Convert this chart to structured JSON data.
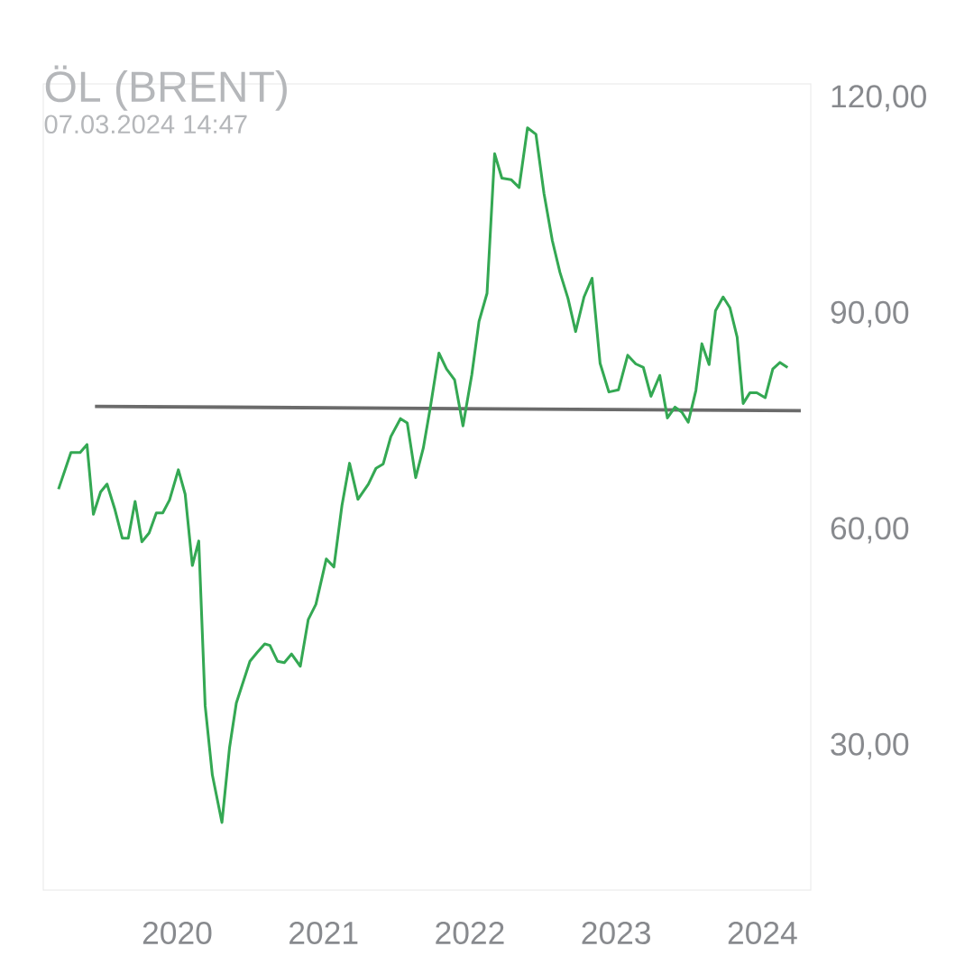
{
  "chart_data": {
    "type": "line",
    "title": "ÖL (BRENT)",
    "subtitle": "07.03.2024 14:47",
    "xlim": [
      "2019-02-01",
      "2024-05-01"
    ],
    "ylim": [
      10,
      122
    ],
    "xticks": [
      {
        "value": "2020-01-01",
        "label": "2020"
      },
      {
        "value": "2021-01-01",
        "label": "2021"
      },
      {
        "value": "2022-01-01",
        "label": "2022"
      },
      {
        "value": "2023-01-01",
        "label": "2023"
      },
      {
        "value": "2024-01-01",
        "label": "2024"
      }
    ],
    "yticks": [
      {
        "value": 30,
        "label": "30,00"
      },
      {
        "value": 60,
        "label": "60,00"
      },
      {
        "value": 90,
        "label": "90,00"
      },
      {
        "value": 120,
        "label": "120,00"
      }
    ],
    "series": [
      {
        "type": "line",
        "color": "#6b6b6b",
        "x": [
          "2019-06-10",
          "2024-04-06"
        ],
        "values": [
          77.2,
          76.6
        ]
      },
      {
        "color": "#34a853",
        "x": [
          "2019-03-11",
          "2019-04-11",
          "2019-05-04",
          "2019-05-21",
          "2019-06-06",
          "2019-06-24",
          "2019-07-10",
          "2019-07-29",
          "2019-08-17",
          "2019-09-01",
          "2019-09-18",
          "2019-10-05",
          "2019-10-23",
          "2019-11-10",
          "2019-11-26",
          "2019-12-13",
          "2020-01-04",
          "2020-01-21",
          "2020-02-08",
          "2020-02-24",
          "2020-03-11",
          "2020-03-29",
          "2020-04-22",
          "2020-05-11",
          "2020-05-28",
          "2020-07-01",
          "2020-07-19",
          "2020-08-07",
          "2020-08-20",
          "2020-09-08",
          "2020-09-25",
          "2020-10-13",
          "2020-11-04",
          "2020-11-24",
          "2020-12-13",
          "2021-01-08",
          "2021-01-27",
          "2021-02-16",
          "2021-03-07",
          "2021-03-28",
          "2021-04-23",
          "2021-05-12",
          "2021-05-30",
          "2021-06-18",
          "2021-07-12",
          "2021-07-29",
          "2021-08-19",
          "2021-09-07",
          "2021-09-25",
          "2021-10-16",
          "2021-11-04",
          "2021-11-24",
          "2021-12-15",
          "2022-01-06",
          "2022-01-24",
          "2022-02-13",
          "2022-03-04",
          "2022-03-22",
          "2022-04-14",
          "2022-05-04",
          "2022-05-25",
          "2022-06-15",
          "2022-07-05",
          "2022-07-26",
          "2022-08-14",
          "2022-09-03",
          "2022-09-22",
          "2022-10-13",
          "2022-11-02",
          "2022-11-22",
          "2022-12-14",
          "2023-01-07",
          "2023-01-30",
          "2023-02-19",
          "2023-03-10",
          "2023-03-29",
          "2023-04-20",
          "2023-05-09",
          "2023-05-28",
          "2023-06-14",
          "2023-06-30",
          "2023-07-19",
          "2023-08-03",
          "2023-08-21",
          "2023-09-06",
          "2023-09-25",
          "2023-10-12",
          "2023-10-30",
          "2023-11-14",
          "2023-12-01",
          "2023-12-18",
          "2024-01-08",
          "2024-01-27",
          "2024-02-14",
          "2024-03-04"
        ],
        "values": [
          65.7,
          70.8,
          70.8,
          71.9,
          62.2,
          65.3,
          66.4,
          63.0,
          58.9,
          58.9,
          64.0,
          58.4,
          59.6,
          62.4,
          62.4,
          64.2,
          68.4,
          65.0,
          55.1,
          58.5,
          35.6,
          26.0,
          19.4,
          29.8,
          36.0,
          41.8,
          43.0,
          44.2,
          44.0,
          41.8,
          41.6,
          42.8,
          41.1,
          47.6,
          49.7,
          56.0,
          54.9,
          63.4,
          69.3,
          64.3,
          66.4,
          68.6,
          69.2,
          73.0,
          75.5,
          74.9,
          67.3,
          71.4,
          77.2,
          84.6,
          82.4,
          80.9,
          74.5,
          81.6,
          89.0,
          92.9,
          112.3,
          108.9,
          108.7,
          107.6,
          115.9,
          115.0,
          106.8,
          100.2,
          95.8,
          92.2,
          87.6,
          92.4,
          95.0,
          83.2,
          79.2,
          79.5,
          84.3,
          83.1,
          82.6,
          78.6,
          81.5,
          75.6,
          77.1,
          76.4,
          75.0,
          79.4,
          85.9,
          83.0,
          90.5,
          92.4,
          90.9,
          86.8,
          77.6,
          79.1,
          79.1,
          78.4,
          82.4,
          83.3,
          82.6
        ]
      }
    ]
  }
}
